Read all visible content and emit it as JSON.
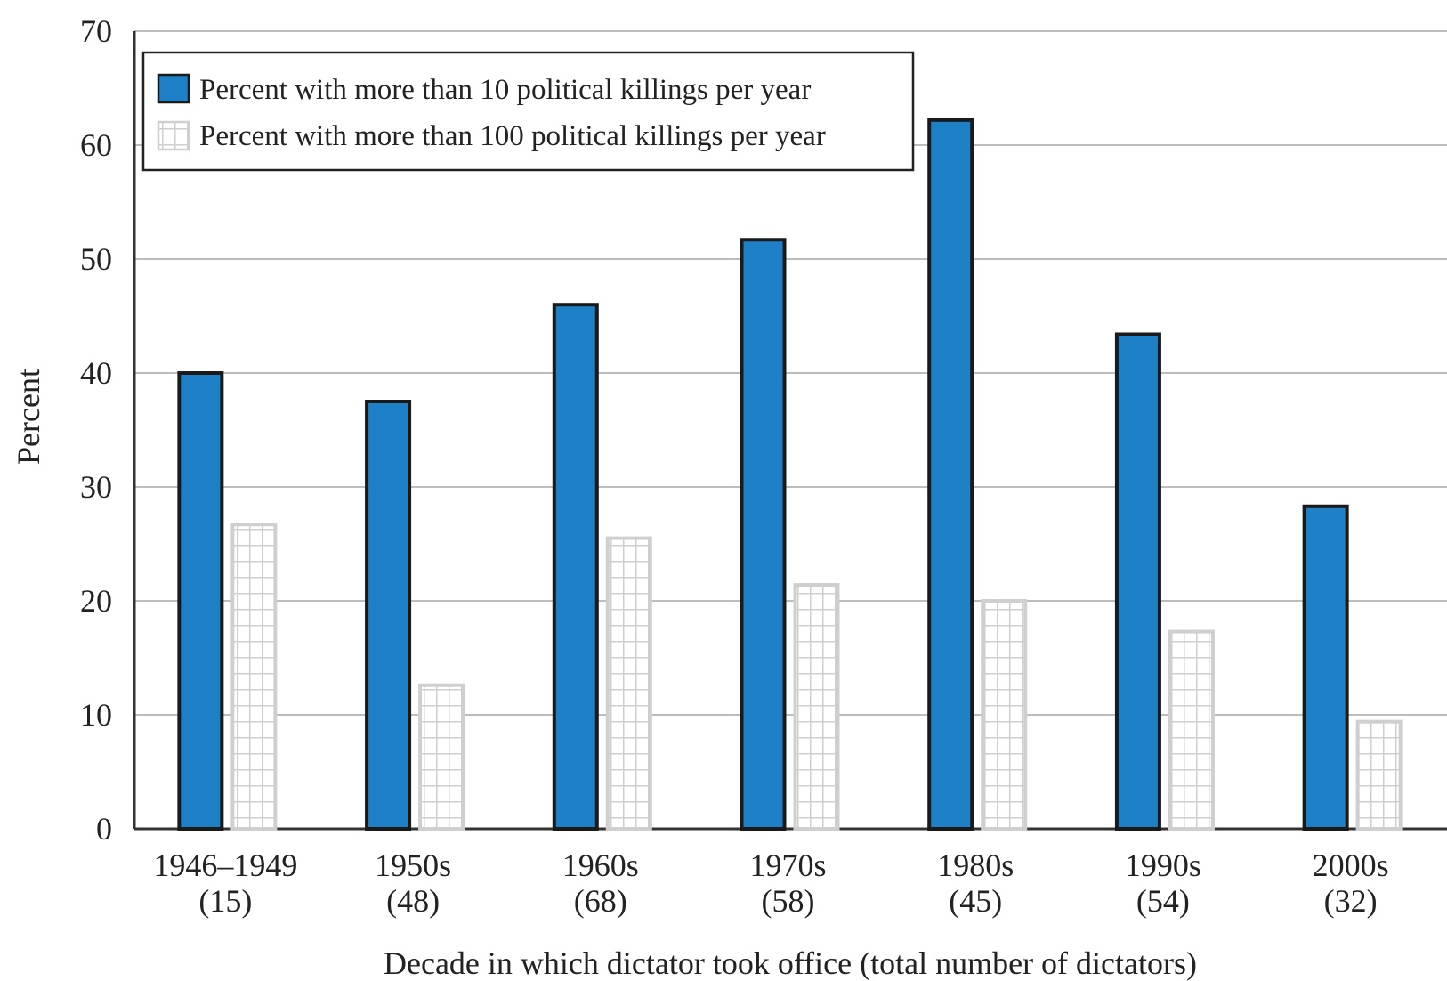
{
  "chart_data": {
    "type": "bar",
    "categories": [
      "1946–1949",
      "1950s",
      "1960s",
      "1970s",
      "1980s",
      "1990s",
      "2000s"
    ],
    "category_counts": [
      "(15)",
      "(48)",
      "(68)",
      "(58)",
      "(45)",
      "(54)",
      "(32)"
    ],
    "series": [
      {
        "name": "Percent with more than 10 political killings per year",
        "color": "#1e80c6",
        "pattern": "solid",
        "values": [
          40.0,
          37.5,
          46.0,
          51.7,
          62.2,
          43.4,
          28.3
        ]
      },
      {
        "name": "Percent with more than 100 political killings per year",
        "color": "#cfcfcf",
        "pattern": "grid",
        "values": [
          26.7,
          12.6,
          25.5,
          21.4,
          20.0,
          17.3,
          9.4
        ]
      }
    ],
    "xlabel": "Decade in which dictator took office (total number of dictators)",
    "ylabel": "Percent",
    "ylim": [
      0,
      70
    ],
    "yticks": [
      "0",
      "10",
      "20",
      "30",
      "40",
      "50",
      "60",
      "70"
    ],
    "grid": true,
    "legend_position": "top-left"
  }
}
